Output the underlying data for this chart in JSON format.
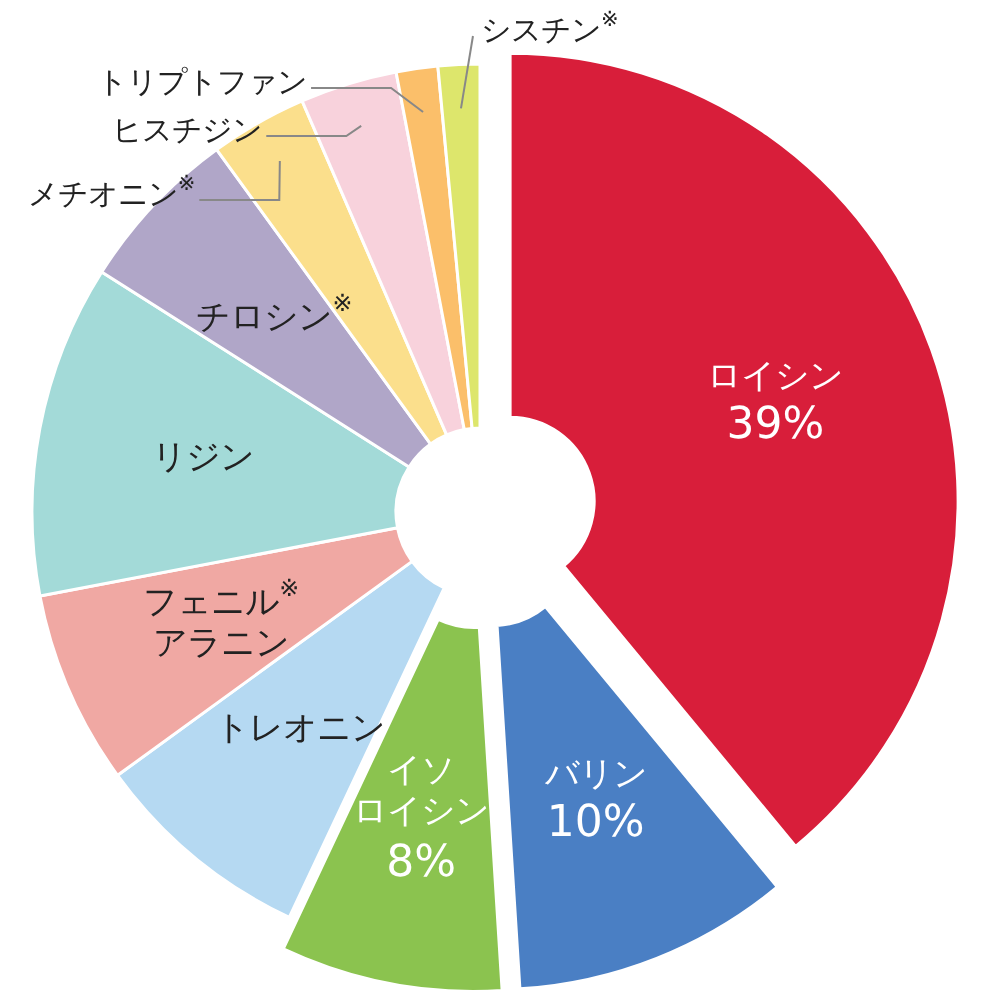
{
  "chart_data": {
    "type": "donut",
    "categories": [
      "ロイシン",
      "バリン",
      "イソロイシン",
      "トレオニン",
      "フェニル$^{※}$アラニン",
      "リジン",
      "チロシン$^{※}$",
      "メチオニン$^{※}$",
      "ヒスチジン",
      "トリプトファン",
      "シスチン$^{※}$"
    ],
    "values": [
      39,
      10,
      8,
      8,
      7,
      12,
      6,
      3.5,
      3.5,
      1.5,
      1.5
    ],
    "colors": [
      "#d81e3a",
      "#4a7fc4",
      "#8bc34f",
      "#b5d9f2",
      "#f0a8a3",
      "#a3dad8",
      "#b0a6c8",
      "#fbdf8c",
      "#f8d2dc",
      "#fbbf6a",
      "#dde66c"
    ],
    "value_labels": [
      "39%",
      "10%",
      "8%",
      null,
      null,
      null,
      null,
      null,
      null,
      null,
      null
    ]
  }
}
